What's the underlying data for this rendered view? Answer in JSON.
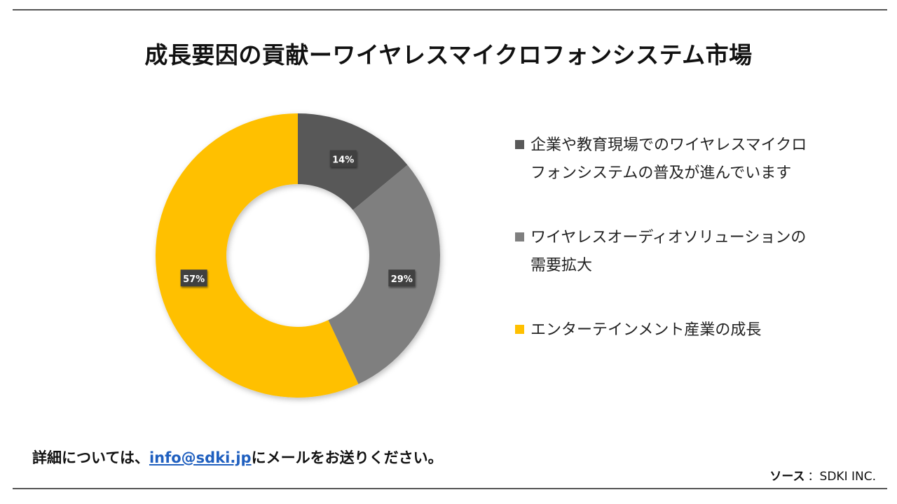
{
  "title": "成長要因の貢献ーワイヤレスマイクロフォンシステム市場",
  "chart_data": {
    "type": "pie",
    "donut": true,
    "unit": "%",
    "categories": [
      "企業や教育現場でのワイヤレスマイクロフォンシステムの普及が進んでいます",
      "ワイヤレスオーディオソリューションの需要拡大",
      "エンターテインメント産業の成長"
    ],
    "values": [
      14,
      29,
      57
    ],
    "colors": [
      "#595959",
      "#7f7f7f",
      "#ffc000"
    ],
    "data_labels": [
      "14%",
      "29%",
      "57%"
    ],
    "legend_position": "right"
  },
  "footer": {
    "prefix": "詳細については、",
    "email": "info@sdki.jp",
    "suffix": "にメールをお送りください。"
  },
  "source": {
    "label": "ソース",
    "value": "：SDKI INC."
  }
}
